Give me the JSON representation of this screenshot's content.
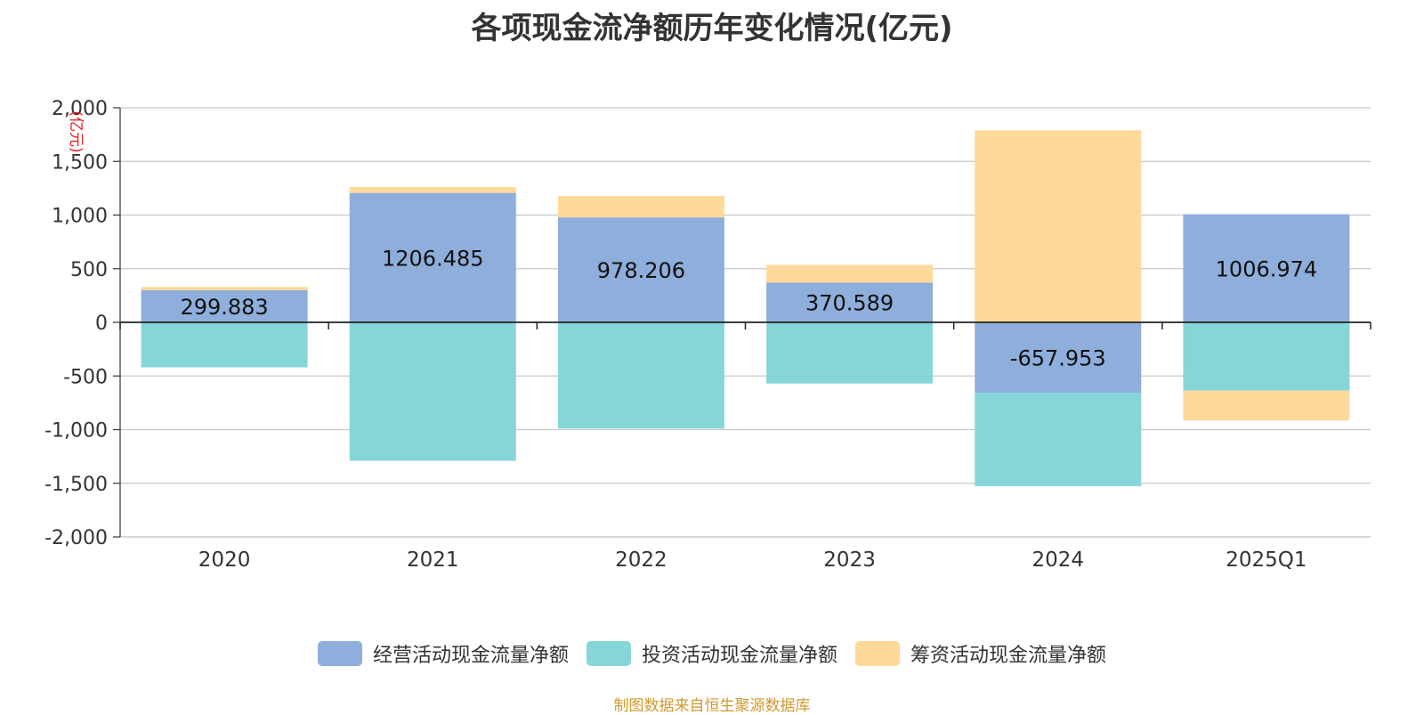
{
  "chart_data": {
    "type": "bar",
    "stacked": true,
    "title": "各项现金流净额历年变化情况(亿元)",
    "ylabel": "(亿元)",
    "xlabel": "",
    "ylim": [
      -2000,
      2000
    ],
    "yticks": [
      2000,
      1500,
      1000,
      500,
      0,
      -500,
      -1000,
      -1500,
      -2000
    ],
    "ytick_labels": [
      "2,000",
      "1,500",
      "1,000",
      "500",
      "0",
      "-500",
      "-1,000",
      "-1,500",
      "-2,000"
    ],
    "categories": [
      "2020",
      "2021",
      "2022",
      "2023",
      "2024",
      "2025Q1"
    ],
    "grid": true,
    "legend_position": "bottom",
    "series": [
      {
        "name": "经营活动现金流量净额",
        "color": "#8eaedb",
        "values": [
          299.883,
          1206.485,
          978.206,
          370.589,
          -657.953,
          1006.974
        ],
        "labels": [
          "299.883",
          "1206.485",
          "978.206",
          "370.589",
          "-657.953",
          "1006.974"
        ]
      },
      {
        "name": "投资活动现金流量净额",
        "color": "#86d6d8",
        "values": [
          -420,
          -1290,
          -990,
          -570,
          -870,
          -635
        ]
      },
      {
        "name": "筹资活动现金流量净额",
        "color": "#ffd999",
        "values": [
          30,
          55,
          200,
          165,
          1790,
          -280
        ]
      }
    ]
  },
  "source": {
    "text": "制图数据来自恒生聚源数据库",
    "color": "#d09a2c"
  }
}
